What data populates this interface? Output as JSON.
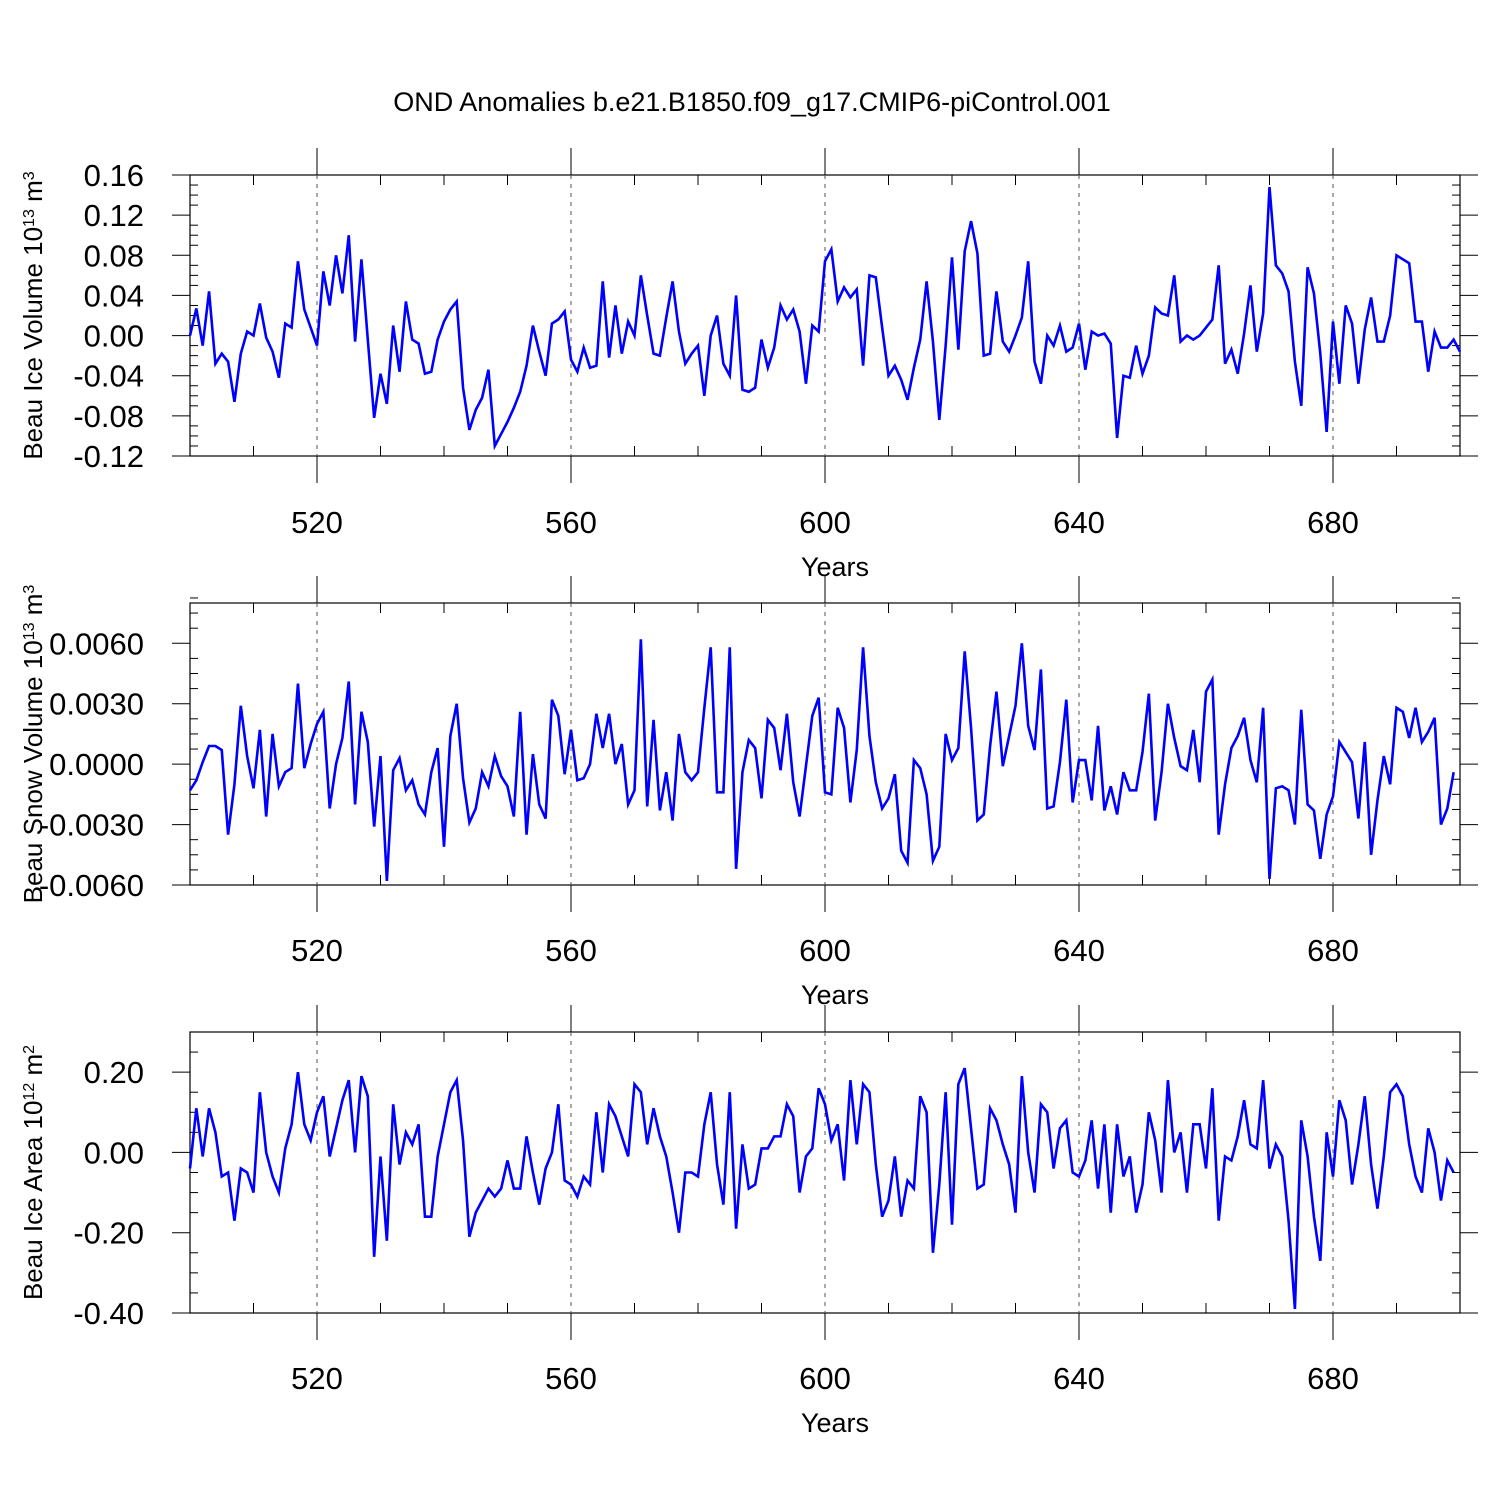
{
  "title": "OND Anomalies b.e21.B1850.f09_g17.CMIP6-piControl.001",
  "line_color": "#0000ff",
  "chart_data": [
    {
      "type": "line",
      "xlabel": "Years",
      "ylabel": {
        "text": "Beau Ice Volume 10",
        "exp": "13",
        "unit": " m",
        "unit_exp": "3"
      },
      "xlim": [
        500,
        700
      ],
      "ylim": [
        -0.12,
        0.16
      ],
      "xticks": [
        520,
        560,
        600,
        640,
        680
      ],
      "xtick_labels": [
        "520",
        "560",
        "600",
        "640",
        "680"
      ],
      "yticks": [
        -0.12,
        -0.08,
        -0.04,
        0.0,
        0.04,
        0.08,
        0.12,
        0.16
      ],
      "ytick_labels": [
        "-0.12",
        "-0.08",
        "-0.04",
        "0.00",
        "0.04",
        "0.08",
        "0.12",
        "0.16"
      ],
      "grid": "vertical dashed at major x ticks",
      "x_start": 500,
      "values": [
        0.0,
        0.027,
        -0.01,
        0.044,
        -0.028,
        -0.018,
        -0.026,
        -0.066,
        -0.018,
        0.004,
        0.0,
        0.032,
        -0.002,
        -0.016,
        -0.042,
        0.012,
        0.008,
        0.074,
        0.026,
        0.008,
        -0.01,
        0.064,
        0.03,
        0.08,
        0.042,
        0.1,
        -0.006,
        0.076,
        -0.004,
        -0.082,
        -0.038,
        -0.068,
        0.01,
        -0.036,
        0.034,
        -0.004,
        -0.008,
        -0.038,
        -0.036,
        -0.004,
        0.014,
        0.026,
        0.034,
        -0.052,
        -0.094,
        -0.074,
        -0.062,
        -0.034,
        -0.11,
        -0.098,
        -0.086,
        -0.072,
        -0.056,
        -0.03,
        0.01,
        -0.016,
        -0.04,
        0.012,
        0.016,
        0.024,
        -0.024,
        -0.036,
        -0.012,
        -0.032,
        -0.03,
        0.054,
        -0.022,
        0.03,
        -0.018,
        0.014,
        0.0,
        0.06,
        0.02,
        -0.018,
        -0.02,
        0.018,
        0.054,
        0.004,
        -0.028,
        -0.018,
        -0.01,
        -0.06,
        0.0,
        0.02,
        -0.028,
        -0.04,
        0.04,
        -0.054,
        -0.056,
        -0.052,
        -0.004,
        -0.032,
        -0.012,
        0.03,
        0.016,
        0.026,
        0.004,
        -0.048,
        0.01,
        0.004,
        0.074,
        0.086,
        0.034,
        0.048,
        0.038,
        0.046,
        -0.03,
        0.06,
        0.058,
        0.008,
        -0.04,
        -0.03,
        -0.044,
        -0.064,
        -0.032,
        -0.004,
        0.054,
        -0.006,
        -0.084,
        -0.01,
        0.078,
        -0.014,
        0.084,
        0.114,
        0.082,
        -0.02,
        -0.018,
        0.044,
        -0.006,
        -0.016,
        0.0,
        0.018,
        0.074,
        -0.026,
        -0.048,
        0.0,
        -0.01,
        0.01,
        -0.016,
        -0.012,
        0.012,
        -0.034,
        0.004,
        0.0,
        0.002,
        -0.008,
        -0.102,
        -0.04,
        -0.042,
        -0.01,
        -0.038,
        -0.02,
        0.028,
        0.022,
        0.02,
        0.06,
        -0.006,
        0.0,
        -0.004,
        0.0,
        0.008,
        0.016,
        0.07,
        -0.028,
        -0.014,
        -0.038,
        0.002,
        0.05,
        -0.016,
        0.022,
        0.148,
        0.07,
        0.062,
        0.044,
        -0.026,
        -0.07,
        0.068,
        0.042,
        -0.018,
        -0.096,
        0.014,
        -0.048,
        0.03,
        0.012,
        -0.048,
        0.006,
        0.038,
        -0.006,
        -0.006,
        0.02,
        0.08,
        0.076,
        0.072,
        0.014,
        0.014,
        -0.036,
        0.004,
        -0.012,
        -0.012,
        -0.004,
        -0.016
      ]
    },
    {
      "type": "line",
      "xlabel": "Years",
      "ylabel": {
        "text": "Beau Snow Volume 10",
        "exp": "13",
        "unit": " m",
        "unit_exp": "3"
      },
      "xlim": [
        500,
        700
      ],
      "ylim": [
        -0.006,
        0.008
      ],
      "xticks": [
        520,
        560,
        600,
        640,
        680
      ],
      "xtick_labels": [
        "520",
        "560",
        "600",
        "640",
        "680"
      ],
      "yticks": [
        -0.006,
        -0.003,
        0.0,
        0.003,
        0.006
      ],
      "ytick_labels": [
        "-0.0060",
        "-0.0030",
        "0.0000",
        "0.0030",
        "0.0060"
      ],
      "grid": "vertical dashed at major x ticks",
      "x_start": 500,
      "values": [
        -0.0013,
        -0.0008,
        0.0001,
        0.0009,
        0.0009,
        0.0007,
        -0.0035,
        -0.001,
        0.0029,
        0.0004,
        -0.0012,
        0.0017,
        -0.0026,
        0.0015,
        -0.0011,
        -0.0004,
        -0.0002,
        0.004,
        -0.0002,
        0.001,
        0.002,
        0.0026,
        -0.0022,
        0.0,
        0.0013,
        0.0041,
        -0.002,
        0.0026,
        0.0011,
        -0.0031,
        0.0004,
        -0.0058,
        -0.0003,
        0.0003,
        -0.0013,
        -0.0008,
        -0.002,
        -0.0025,
        -0.0004,
        0.0008,
        -0.0041,
        0.0014,
        0.003,
        -0.0007,
        -0.0029,
        -0.0022,
        -0.0004,
        -0.0011,
        0.0004,
        -0.0006,
        -0.0011,
        -0.0026,
        0.0026,
        -0.0035,
        0.0005,
        -0.002,
        -0.0027,
        0.0032,
        0.0024,
        -0.0005,
        0.0017,
        -0.0008,
        -0.0007,
        0.0,
        0.0025,
        0.0008,
        0.0025,
        0.0,
        0.001,
        -0.002,
        -0.0013,
        0.0062,
        -0.0021,
        0.0022,
        -0.0023,
        -0.0004,
        -0.0028,
        0.0015,
        -0.0004,
        -0.0008,
        -0.0004,
        0.0028,
        0.0058,
        -0.0014,
        -0.0014,
        0.0058,
        -0.0052,
        -0.0004,
        0.0012,
        0.0008,
        -0.0017,
        0.0022,
        0.0018,
        -0.0003,
        0.0025,
        -0.0009,
        -0.0026,
        -0.0001,
        0.0024,
        0.0033,
        -0.0014,
        -0.0015,
        0.0028,
        0.0018,
        -0.0019,
        0.0007,
        0.0058,
        0.0014,
        -0.0009,
        -0.0022,
        -0.0017,
        -0.0005,
        -0.0043,
        -0.0049,
        0.0002,
        -0.0002,
        -0.0015,
        -0.0048,
        -0.0041,
        0.0015,
        0.0002,
        0.0008,
        0.0056,
        0.0018,
        -0.0028,
        -0.0025,
        0.0009,
        0.0036,
        -0.0001,
        0.0014,
        0.0029,
        0.006,
        0.0019,
        0.0007,
        0.0047,
        -0.0022,
        -0.0021,
        0.0001,
        0.0032,
        -0.0019,
        0.0002,
        0.0002,
        -0.0018,
        0.0019,
        -0.0023,
        -0.0011,
        -0.0025,
        -0.0004,
        -0.0013,
        -0.0013,
        0.0006,
        0.0035,
        -0.0028,
        -0.0004,
        0.003,
        0.0013,
        -0.0001,
        -0.0003,
        0.0017,
        -0.0009,
        0.0036,
        0.0042,
        -0.0035,
        -0.001,
        0.0008,
        0.0014,
        0.0023,
        0.0002,
        -0.0009,
        0.0028,
        -0.0057,
        -0.0012,
        -0.0011,
        -0.0013,
        -0.003,
        0.0027,
        -0.002,
        -0.0023,
        -0.0047,
        -0.0025,
        -0.0016,
        0.0011,
        0.0006,
        0.0001,
        -0.0027,
        0.0011,
        -0.0045,
        -0.0018,
        0.0004,
        -0.001,
        0.0028,
        0.0026,
        0.0013,
        0.0028,
        0.0011,
        0.0016,
        0.0023,
        -0.003,
        -0.0022,
        -0.0004
      ]
    },
    {
      "type": "line",
      "xlabel": "Years",
      "ylabel": {
        "text": "Beau Ice Area 10",
        "exp": "12",
        "unit": " m",
        "unit_exp": "2"
      },
      "xlim": [
        500,
        700
      ],
      "ylim": [
        -0.4,
        0.3
      ],
      "xticks": [
        520,
        560,
        600,
        640,
        680
      ],
      "xtick_labels": [
        "520",
        "560",
        "600",
        "640",
        "680"
      ],
      "yticks": [
        -0.4,
        -0.2,
        0.0,
        0.2
      ],
      "ytick_labels": [
        "-0.40",
        "-0.20",
        "0.00",
        "0.20"
      ],
      "grid": "vertical dashed at major x ticks",
      "x_start": 500,
      "values": [
        -0.04,
        0.11,
        -0.01,
        0.11,
        0.05,
        -0.06,
        -0.05,
        -0.17,
        -0.04,
        -0.05,
        -0.1,
        0.15,
        0.0,
        -0.06,
        -0.1,
        0.01,
        0.07,
        0.2,
        0.07,
        0.03,
        0.1,
        0.14,
        -0.01,
        0.06,
        0.13,
        0.18,
        0.0,
        0.19,
        0.14,
        -0.26,
        -0.01,
        -0.22,
        0.12,
        -0.03,
        0.05,
        0.02,
        0.07,
        -0.16,
        -0.16,
        -0.01,
        0.07,
        0.15,
        0.18,
        0.03,
        -0.21,
        -0.15,
        -0.12,
        -0.09,
        -0.11,
        -0.09,
        -0.02,
        -0.09,
        -0.09,
        0.04,
        -0.05,
        -0.13,
        -0.04,
        0.0,
        0.12,
        -0.07,
        -0.08,
        -0.11,
        -0.06,
        -0.08,
        0.1,
        -0.05,
        0.12,
        0.09,
        0.04,
        -0.01,
        0.17,
        0.15,
        0.02,
        0.11,
        0.04,
        -0.01,
        -0.1,
        -0.2,
        -0.05,
        -0.05,
        -0.06,
        0.07,
        0.15,
        -0.03,
        -0.13,
        0.15,
        -0.19,
        0.02,
        -0.09,
        -0.08,
        0.01,
        0.01,
        0.04,
        0.04,
        0.12,
        0.09,
        -0.1,
        -0.01,
        0.01,
        0.16,
        0.12,
        0.03,
        0.07,
        -0.07,
        0.18,
        0.02,
        0.17,
        0.15,
        -0.03,
        -0.16,
        -0.12,
        -0.01,
        -0.16,
        -0.07,
        -0.09,
        0.14,
        0.1,
        -0.25,
        -0.08,
        0.15,
        -0.18,
        0.17,
        0.21,
        0.06,
        -0.09,
        -0.08,
        0.11,
        0.08,
        0.02,
        -0.03,
        -0.15,
        0.19,
        0.0,
        -0.1,
        0.12,
        0.1,
        -0.04,
        0.06,
        0.08,
        -0.05,
        -0.06,
        -0.02,
        0.08,
        -0.09,
        0.07,
        -0.15,
        0.07,
        -0.06,
        -0.01,
        -0.15,
        -0.08,
        0.1,
        0.03,
        -0.1,
        0.18,
        0.0,
        0.05,
        -0.1,
        0.07,
        0.07,
        -0.04,
        0.16,
        -0.17,
        -0.01,
        -0.02,
        0.04,
        0.13,
        0.02,
        0.01,
        0.18,
        -0.04,
        0.02,
        -0.01,
        -0.17,
        -0.39,
        0.08,
        -0.01,
        -0.16,
        -0.27,
        0.05,
        -0.06,
        0.13,
        0.08,
        -0.08,
        0.02,
        0.14,
        -0.03,
        -0.14,
        -0.01,
        0.15,
        0.17,
        0.14,
        0.02,
        -0.06,
        -0.1,
        0.06,
        0.0,
        -0.12,
        -0.02,
        -0.05
      ]
    }
  ]
}
